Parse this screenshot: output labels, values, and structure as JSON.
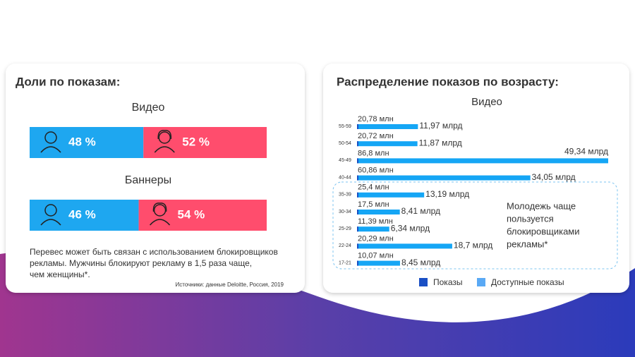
{
  "chart_data": [
    {
      "type": "stacked-bar",
      "title": "Доли по показам:",
      "categories": [
        "Видео",
        "Баннеры"
      ],
      "series": [
        {
          "color": "#1ea7f0",
          "values": [
            48,
            46
          ],
          "value_labels": [
            "48 %",
            "46 %"
          ]
        },
        {
          "color": "#ff4d6d",
          "values": [
            52,
            54
          ],
          "value_labels": [
            "52 %",
            "54 %"
          ]
        }
      ],
      "note": [
        "Перевес может быть связан с использованием блокировщиков",
        "рекламы. Мужчины блокируют рекламу в 1,5 раза чаще,",
        "чем женщины*."
      ],
      "source": "Источники: данные Deloitte, Россия, 2019"
    },
    {
      "type": "horizontal-bar",
      "title": "Распределение показов по возрасту:",
      "subtitle": "Видео",
      "categories": [
        "55-59",
        "50-54",
        "45-49",
        "40-44",
        "35-39",
        "30-34",
        "25-29",
        "22-24",
        "17-21"
      ],
      "series": [
        {
          "name": "Показы",
          "color": "#1a4fc4",
          "values": [
            20.78,
            20.72,
            86.8,
            60.86,
            25.4,
            17.5,
            11.39,
            20.29,
            10.07
          ],
          "value_labels": [
            "20,78 млн",
            "20,72 млн",
            "86,8 млн",
            "60,86 млн",
            "25,4 млн",
            "17,5 млн",
            "11,39 млн",
            "20,29 млн",
            "10,07 млн"
          ]
        },
        {
          "name": "Доступные показы",
          "color": "#15a6f5",
          "values": [
            11.97,
            11.87,
            49.34,
            34.05,
            13.19,
            8.41,
            6.34,
            18.7,
            8.45
          ],
          "value_labels": [
            "11,97 млрд",
            "11,87 млрд",
            "49,34 млрд",
            "34,05 млрд",
            "13,19 млрд",
            "8,41 млрд",
            "6,34 млрд",
            "18,7 млрд",
            "8,45 млрд"
          ]
        }
      ],
      "annotation": [
        "Молодежь чаще",
        "пользуется",
        "блокировщиками",
        "рекламы*"
      ]
    }
  ]
}
